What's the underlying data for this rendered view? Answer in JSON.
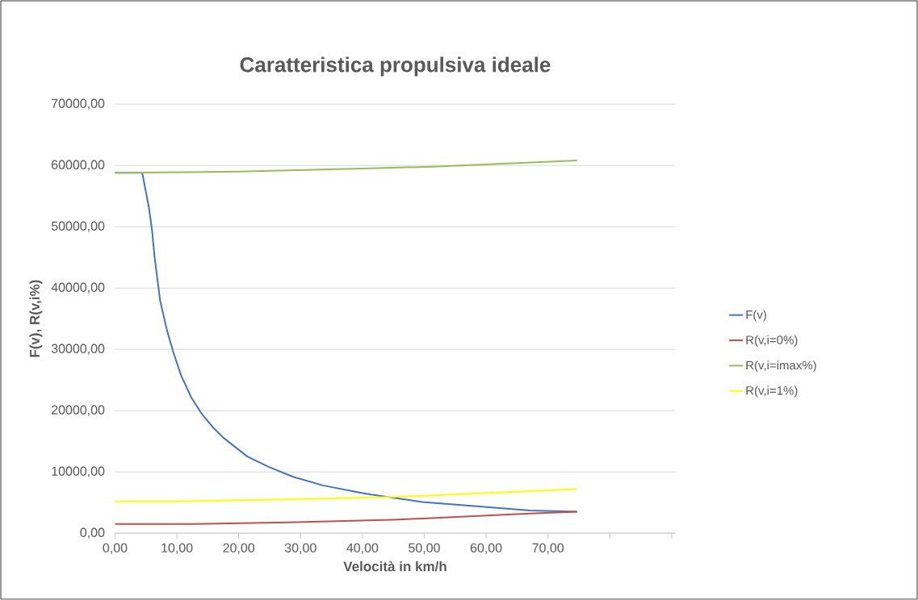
{
  "chart_data": {
    "type": "line",
    "title": "Caratteristica propulsiva ideale",
    "xlabel": "Velocità in km/h",
    "ylabel": "F(v),  R(v,i%)",
    "xlim": [
      0,
      90.6
    ],
    "ylim": [
      0,
      70000
    ],
    "xticks": [
      {
        "value": 0,
        "label": "0,00"
      },
      {
        "value": 10,
        "label": "10,00"
      },
      {
        "value": 20,
        "label": "20,00"
      },
      {
        "value": 30,
        "label": "30,00"
      },
      {
        "value": 40,
        "label": "40,00"
      },
      {
        "value": 50,
        "label": "50,00"
      },
      {
        "value": 60,
        "label": "60,00"
      },
      {
        "value": 70,
        "label": "70,00"
      },
      {
        "value": 80,
        "label": null
      },
      {
        "value": 90,
        "label": null
      }
    ],
    "yticks": [
      {
        "value": 0,
        "label": "0,00"
      },
      {
        "value": 10000,
        "label": "10000,00"
      },
      {
        "value": 20000,
        "label": "20000,00"
      },
      {
        "value": 30000,
        "label": "30000,00"
      },
      {
        "value": 40000,
        "label": "40000,00"
      },
      {
        "value": 50000,
        "label": "50000,00"
      },
      {
        "value": 60000,
        "label": "60000,00"
      },
      {
        "value": 70000,
        "label": "70000,00"
      }
    ],
    "grid": "y",
    "legend": "right",
    "marker": "none",
    "line_style": "solid",
    "series": [
      {
        "name": "F(v)",
        "color": "#4472c4",
        "x": [
          0,
          4.4,
          5.5,
          6.0,
          6.4,
          7.3,
          8.4,
          9.4,
          10.7,
          12.3,
          14.0,
          15.8,
          17.5,
          21.4,
          24.9,
          28.8,
          33.6,
          39.7,
          41.4,
          49.7,
          59.7,
          67.1,
          74.7
        ],
        "values": [
          58800,
          58800,
          53000,
          49300,
          45000,
          37900,
          33100,
          29600,
          25700,
          22200,
          19500,
          17300,
          15600,
          12500,
          10800,
          9200,
          7800,
          6600,
          6300,
          5100,
          4300,
          3700,
          3500
        ]
      },
      {
        "name": "R(v,i=0%)",
        "color": "#c0504d",
        "x": [
          0,
          12.3,
          27.9,
          44.9,
          49.7,
          67.1,
          74.7
        ],
        "values": [
          1500,
          1500,
          1750,
          2200,
          2400,
          3200,
          3500
        ]
      },
      {
        "name": "R(v,i=imax%)",
        "color": "#9bbb59",
        "x": [
          0,
          20,
          40,
          51.4,
          74.7
        ],
        "values": [
          58800,
          59000,
          59500,
          59800,
          60800
        ]
      },
      {
        "name": "R(v,i=1%)",
        "color": "#ffff00",
        "x": [
          0,
          10,
          27.9,
          44.9,
          49.7,
          74.7
        ],
        "values": [
          5200,
          5200,
          5500,
          5900,
          6100,
          7200
        ]
      }
    ]
  }
}
